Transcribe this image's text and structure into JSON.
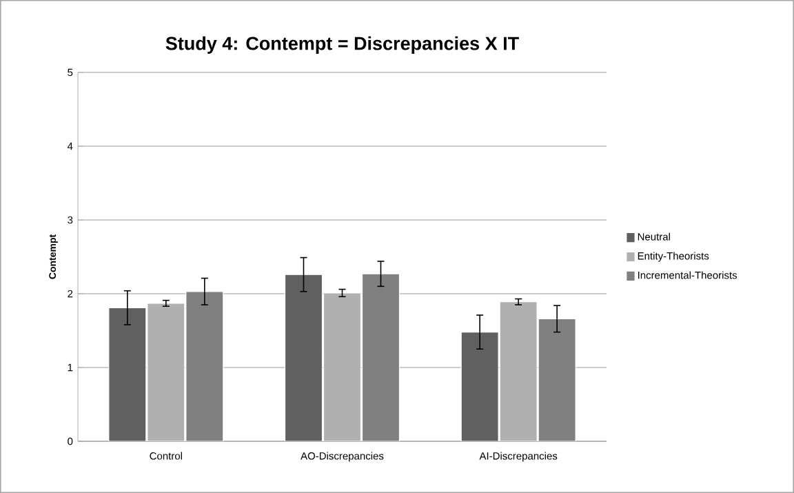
{
  "chart_data": {
    "type": "bar",
    "title": "Study 4: Contempt = Discrepancies X IT",
    "ylabel": "Contempt",
    "categories": [
      "Control",
      "AO-Discrepancies",
      "AI-Discrepancies"
    ],
    "series": [
      {
        "name": "Neutral",
        "color": "#606060",
        "values": [
          1.81,
          2.26,
          1.48
        ],
        "errors": [
          0.23,
          0.23,
          0.23
        ]
      },
      {
        "name": "Entity-Theorists",
        "color": "#b0b0b0",
        "values": [
          1.87,
          2.01,
          1.89
        ],
        "errors": [
          0.04,
          0.05,
          0.04
        ]
      },
      {
        "name": "Incremental-Theorists",
        "color": "#808080",
        "values": [
          2.03,
          2.27,
          1.66
        ],
        "errors": [
          0.18,
          0.17,
          0.18
        ]
      }
    ],
    "ylim": [
      0,
      5
    ],
    "yticks": [
      0,
      1,
      2,
      3,
      4,
      5
    ],
    "grid": "y",
    "legend": "right"
  }
}
